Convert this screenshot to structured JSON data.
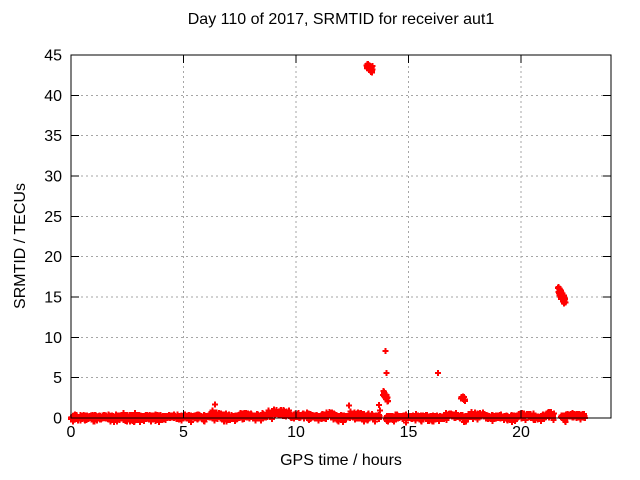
{
  "chart_data": {
    "type": "scatter",
    "title": "Day 110 of 2017, SRMTID for receiver aut1",
    "xlabel": "GPS time / hours",
    "ylabel": "SRMTID / TECUs",
    "xlim": [
      0,
      24
    ],
    "ylim": [
      0,
      45
    ],
    "xticks": [
      0,
      5,
      10,
      15,
      20
    ],
    "yticks": [
      0,
      5,
      10,
      15,
      20,
      25,
      30,
      35,
      40,
      45
    ],
    "grid": true,
    "legend": null,
    "marker": {
      "shape": "plus",
      "color": "#ff0000",
      "size": 7
    },
    "colors": {
      "background": "#ffffff",
      "axis": "#000000",
      "grid": "#a6a6a6",
      "text": "#000000",
      "series": "#ff0000"
    },
    "baseline_band": {
      "description": "dense SRMTID noise hugging 0 TECUs across the whole day",
      "y_mean": 0.13,
      "y_sd": 0.14,
      "neg_fraction": 0.07,
      "density_per_hour": 95,
      "segments": [
        [
          0.0,
          13.73
        ],
        [
          14.0,
          21.47
        ],
        [
          21.78,
          22.85
        ]
      ],
      "bumps": [
        [
          6.35,
          0.45,
          0.25
        ],
        [
          7.75,
          0.5,
          0.2
        ],
        [
          9.2,
          0.75,
          0.45
        ],
        [
          10.4,
          0.3,
          0.3
        ],
        [
          11.5,
          0.35,
          0.25
        ],
        [
          12.7,
          0.4,
          0.3
        ],
        [
          16.85,
          0.35,
          0.2
        ],
        [
          18.05,
          0.5,
          0.3
        ],
        [
          20.1,
          0.3,
          0.2
        ],
        [
          21.3,
          0.45,
          0.15
        ],
        [
          22.4,
          0.3,
          0.25
        ]
      ]
    },
    "clusters": [
      {
        "t": 13.27,
        "y": 43.45,
        "dt": 0.14,
        "dy": 0.6,
        "slope": -1.5,
        "n": 50
      },
      {
        "t": 13.98,
        "y": 2.7,
        "dt": 0.12,
        "dy": 0.5,
        "slope": -4.0,
        "n": 30
      },
      {
        "t": 17.42,
        "y": 2.45,
        "dt": 0.1,
        "dy": 0.4,
        "slope": -2.0,
        "n": 15
      },
      {
        "t": 21.8,
        "y": 15.3,
        "dt": 0.17,
        "dy": 0.7,
        "slope": -4.5,
        "n": 45
      }
    ],
    "outlier_points": [
      [
        6.4,
        1.7
      ],
      [
        12.35,
        1.55
      ],
      [
        12.42,
        0.8
      ],
      [
        13.68,
        1.6
      ],
      [
        13.73,
        0.9
      ],
      [
        13.98,
        8.3
      ],
      [
        14.02,
        5.6
      ],
      [
        16.3,
        5.6
      ]
    ]
  }
}
